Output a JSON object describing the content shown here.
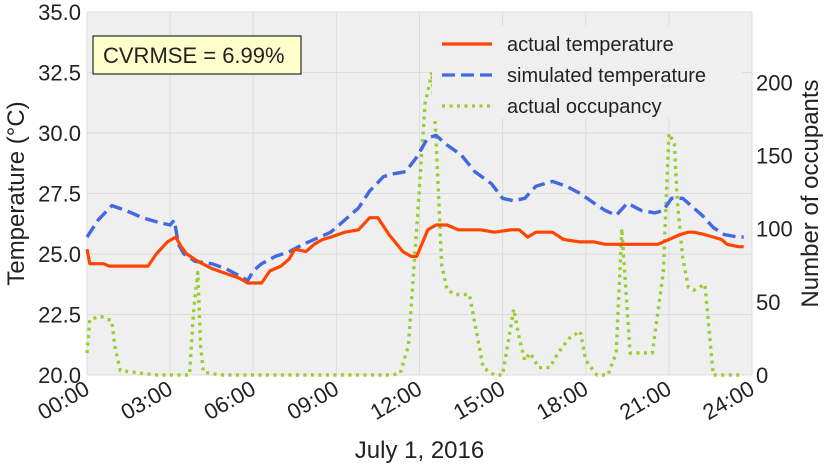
{
  "chart_data": {
    "type": "line",
    "annotation": "CVRMSE = 6.99%",
    "xlabel": "July 1, 2016",
    "ylabel_left": "Temperature (°C)",
    "ylabel_right": "Number of occupants",
    "xlim": [
      0,
      24
    ],
    "ylim_left": [
      20.0,
      35.0
    ],
    "ylim_right": [
      0,
      248
    ],
    "x_ticks": [
      0,
      3,
      6,
      9,
      12,
      15,
      18,
      21,
      24
    ],
    "x_tick_labels": [
      "00:00",
      "03:00",
      "06:00",
      "09:00",
      "12:00",
      "15:00",
      "18:00",
      "21:00",
      "24:00"
    ],
    "y_left_ticks": [
      20.0,
      22.5,
      25.0,
      27.5,
      30.0,
      32.5,
      35.0
    ],
    "y_left_tick_labels": [
      "20.0",
      "22.5",
      "25.0",
      "27.5",
      "30.0",
      "32.5",
      "35.0"
    ],
    "y_right_ticks": [
      0,
      50,
      100,
      150,
      200
    ],
    "y_right_tick_labels": [
      "0",
      "50",
      "100",
      "150",
      "200"
    ],
    "grid": true,
    "legend_position": "top-right",
    "series": [
      {
        "name": "actual temperature",
        "axis": "left",
        "color": "#ff4500",
        "style": "solid",
        "x": [
          0,
          0.1,
          0.6,
          0.8,
          2.2,
          2.5,
          2.9,
          3.2,
          3.4,
          3.6,
          4.0,
          4.5,
          5.0,
          5.5,
          5.8,
          6.3,
          6.6,
          7.0,
          7.3,
          7.5,
          7.9,
          8.2,
          8.5,
          8.8,
          9.3,
          9.8,
          10.2,
          10.5,
          10.9,
          11.4,
          11.7,
          11.9,
          12.3,
          12.6,
          13.0,
          13.4,
          13.9,
          14.2,
          14.7,
          15.3,
          15.6,
          15.9,
          16.2,
          16.8,
          17.2,
          17.8,
          18.3,
          18.7,
          19.0,
          19.5,
          20.0,
          20.6,
          21.0,
          21.4,
          21.7,
          21.9,
          22.3,
          22.9,
          23.1,
          23.5,
          23.7
        ],
        "y": [
          25.2,
          24.6,
          24.6,
          24.5,
          24.5,
          25.0,
          25.5,
          25.7,
          25.3,
          25.0,
          24.7,
          24.4,
          24.2,
          24.0,
          23.8,
          23.8,
          24.3,
          24.5,
          24.8,
          25.2,
          25.1,
          25.4,
          25.6,
          25.7,
          25.9,
          26.0,
          26.5,
          26.5,
          25.8,
          25.1,
          24.9,
          24.9,
          26.0,
          26.2,
          26.2,
          26.0,
          26.0,
          26.0,
          25.9,
          26.0,
          26.0,
          25.7,
          25.9,
          25.9,
          25.6,
          25.5,
          25.5,
          25.4,
          25.4,
          25.4,
          25.4,
          25.4,
          25.6,
          25.8,
          25.9,
          25.9,
          25.8,
          25.6,
          25.4,
          25.3,
          25.3
        ]
      },
      {
        "name": "simulated temperature",
        "axis": "left",
        "color": "#4169e1",
        "style": "dashed",
        "x": [
          0,
          0.4,
          0.9,
          1.4,
          2.0,
          2.6,
          3.0,
          3.15,
          3.3,
          3.5,
          3.9,
          4.5,
          5.0,
          5.5,
          5.8,
          6.0,
          6.3,
          6.8,
          7.3,
          7.8,
          8.2,
          8.8,
          9.3,
          9.8,
          10.2,
          10.7,
          11.0,
          11.5,
          11.9,
          12.3,
          12.6,
          13.0,
          13.5,
          14.0,
          14.6,
          15.0,
          15.4,
          15.8,
          16.2,
          16.8,
          17.3,
          17.8,
          18.3,
          18.7,
          19.1,
          19.5,
          20.0,
          20.5,
          20.8,
          21.1,
          21.5,
          21.8,
          22.2,
          22.6,
          23.0,
          23.5,
          23.7
        ],
        "y": [
          25.7,
          26.4,
          27.0,
          26.8,
          26.5,
          26.3,
          26.2,
          26.4,
          25.4,
          25.0,
          24.7,
          24.6,
          24.4,
          24.1,
          23.9,
          24.3,
          24.6,
          24.9,
          25.1,
          25.4,
          25.6,
          25.9,
          26.4,
          26.9,
          27.6,
          28.2,
          28.3,
          28.4,
          29.0,
          29.8,
          29.9,
          29.5,
          29.1,
          28.4,
          27.9,
          27.3,
          27.2,
          27.3,
          27.8,
          28.0,
          27.8,
          27.5,
          27.1,
          26.8,
          26.6,
          27.1,
          26.8,
          26.7,
          26.8,
          27.3,
          27.3,
          27.0,
          26.6,
          26.1,
          25.8,
          25.7,
          25.7
        ]
      },
      {
        "name": "actual occupancy",
        "axis": "right",
        "color": "#9acd32",
        "style": "dotted",
        "x": [
          0,
          0.1,
          0.5,
          0.9,
          1.0,
          1.2,
          2.5,
          3.0,
          3.7,
          3.85,
          4.0,
          4.1,
          4.2,
          4.8,
          5.5,
          6.0,
          8.0,
          10.0,
          11.0,
          11.3,
          11.6,
          11.9,
          12.2,
          12.45,
          12.6,
          12.8,
          13.0,
          13.3,
          13.8,
          14.3,
          14.7,
          15.0,
          15.4,
          15.6,
          15.8,
          16.0,
          16.3,
          16.7,
          17.0,
          17.4,
          17.8,
          18.0,
          18.4,
          18.8,
          19.1,
          19.3,
          19.6,
          20.0,
          20.4,
          20.8,
          21.0,
          21.2,
          21.3,
          21.5,
          21.7,
          21.9,
          22.3,
          22.6,
          22.9,
          23.2,
          23.5,
          23.7
        ],
        "y": [
          15,
          38,
          40,
          37,
          20,
          3,
          0,
          0,
          0,
          45,
          70,
          20,
          2,
          0,
          0,
          0,
          0,
          0,
          0,
          1,
          20,
          100,
          185,
          207,
          160,
          75,
          58,
          55,
          55,
          5,
          0,
          0,
          45,
          25,
          10,
          15,
          5,
          5,
          15,
          25,
          30,
          10,
          0,
          0,
          15,
          100,
          15,
          15,
          15,
          70,
          165,
          158,
          120,
          80,
          60,
          58,
          62,
          0,
          0,
          0,
          0,
          0
        ]
      }
    ]
  },
  "colors": {
    "plot_background": "#efefef",
    "grid": "#dddddd",
    "annotation_fill": "#ffffcc",
    "annotation_border": "#000000",
    "legend_background": "#efefef"
  }
}
